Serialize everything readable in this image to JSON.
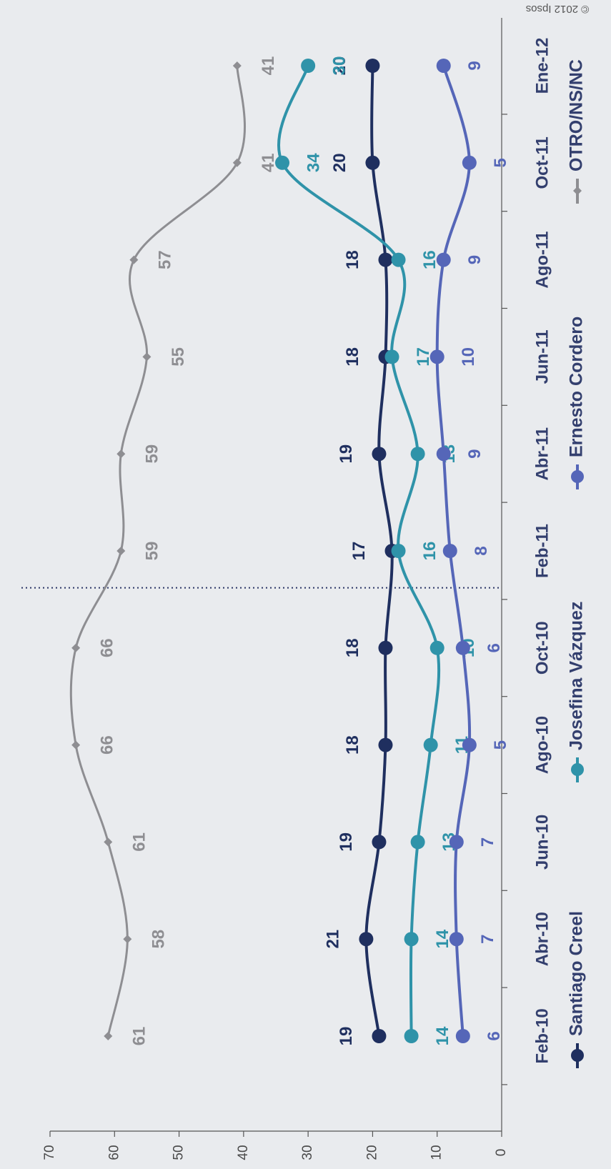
{
  "chart_data": {
    "type": "line",
    "orientation": "rotated-90-cw",
    "categories": [
      "Feb-10",
      "Abr-10",
      "Jun-10",
      "Ago-10",
      "Oct-10",
      "Feb-11",
      "Abr-11",
      "Jun-11",
      "Ago-11",
      "Oct-11",
      "Ene-12"
    ],
    "x_tick_labels": [
      "Feb-10",
      "Abr-10",
      "Jun-10",
      "Ago-10",
      "Oct-10",
      "Feb-11",
      "Abr-11",
      "Jun-11",
      "Ago-11",
      "Oct-11",
      "Ene-12"
    ],
    "ylim": [
      0,
      70
    ],
    "y_ticks": [
      0,
      10,
      20,
      30,
      40,
      50,
      60,
      70
    ],
    "y_tick_labels": [
      "0",
      "10",
      "20",
      "30",
      "40",
      "50",
      "60",
      "70"
    ],
    "grid": false,
    "legend_position": "bottom",
    "divider_after_category": "Oct-10",
    "series": [
      {
        "name": "Santiago Creel",
        "color": "#1f2f5f",
        "marker": "circle",
        "values": [
          19,
          21,
          19,
          18,
          18,
          17,
          19,
          18,
          18,
          20,
          20
        ],
        "labels": [
          "19",
          "21",
          "19",
          "18",
          "18",
          "17",
          "19",
          "18",
          "18",
          "20",
          "20"
        ]
      },
      {
        "name": "Josefina Vázquez",
        "color": "#2f93a9",
        "marker": "circle",
        "values": [
          14,
          14,
          13,
          11,
          10,
          16,
          13,
          17,
          16,
          34,
          30
        ],
        "labels": [
          "14",
          "14",
          "13",
          "11",
          "10",
          "16",
          "13",
          "17",
          "16",
          "34",
          "30"
        ]
      },
      {
        "name": "Ernesto Cordero",
        "color": "#5566b8",
        "marker": "circle",
        "values": [
          6,
          7,
          7,
          5,
          6,
          8,
          9,
          10,
          9,
          5,
          9
        ],
        "labels": [
          "6",
          "7",
          "7",
          "5",
          "6",
          "8",
          "9",
          "10",
          "9",
          "5",
          "9"
        ]
      },
      {
        "name": "OTRO/NS/NC",
        "color": "#8e8e92",
        "marker": "diamond",
        "values": [
          61,
          58,
          61,
          66,
          66,
          59,
          59,
          55,
          57,
          41,
          41
        ],
        "labels": [
          "61",
          "58",
          "61",
          "66",
          "66",
          "59",
          "59",
          "55",
          "57",
          "41",
          "41"
        ]
      }
    ],
    "copyright": "© 2012 Ipsos"
  }
}
